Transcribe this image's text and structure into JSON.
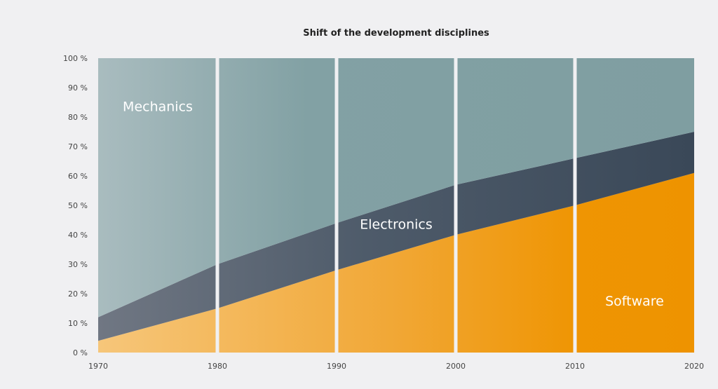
{
  "chart_data": {
    "type": "area",
    "stacked": true,
    "title": "Shift of the development disciplines",
    "xlabel": "",
    "ylabel": "",
    "x": [
      1970,
      1980,
      1990,
      2000,
      2010,
      2020
    ],
    "xlim": [
      1970,
      2020
    ],
    "ylim": [
      0,
      100
    ],
    "y_ticks": [
      "0 %",
      "10 %",
      "20 %",
      "30 %",
      "40 %",
      "50 %",
      "60 %",
      "70 %",
      "80 %",
      "90 %",
      "100 %"
    ],
    "x_ticks": [
      "1970",
      "1980",
      "1990",
      "2000",
      "2010",
      "2020"
    ],
    "grid": false,
    "legend": "inline",
    "series": [
      {
        "name": "Software",
        "values": [
          4,
          15,
          28,
          40,
          50,
          61
        ],
        "color": "#f29400"
      },
      {
        "name": "Electronics",
        "values": [
          8,
          15,
          16,
          17,
          16,
          14
        ],
        "color": "#3f4b5a"
      },
      {
        "name": "Mechanics",
        "values": [
          88,
          70,
          56,
          43,
          34,
          25
        ],
        "color": "#7f9ea1"
      }
    ]
  }
}
